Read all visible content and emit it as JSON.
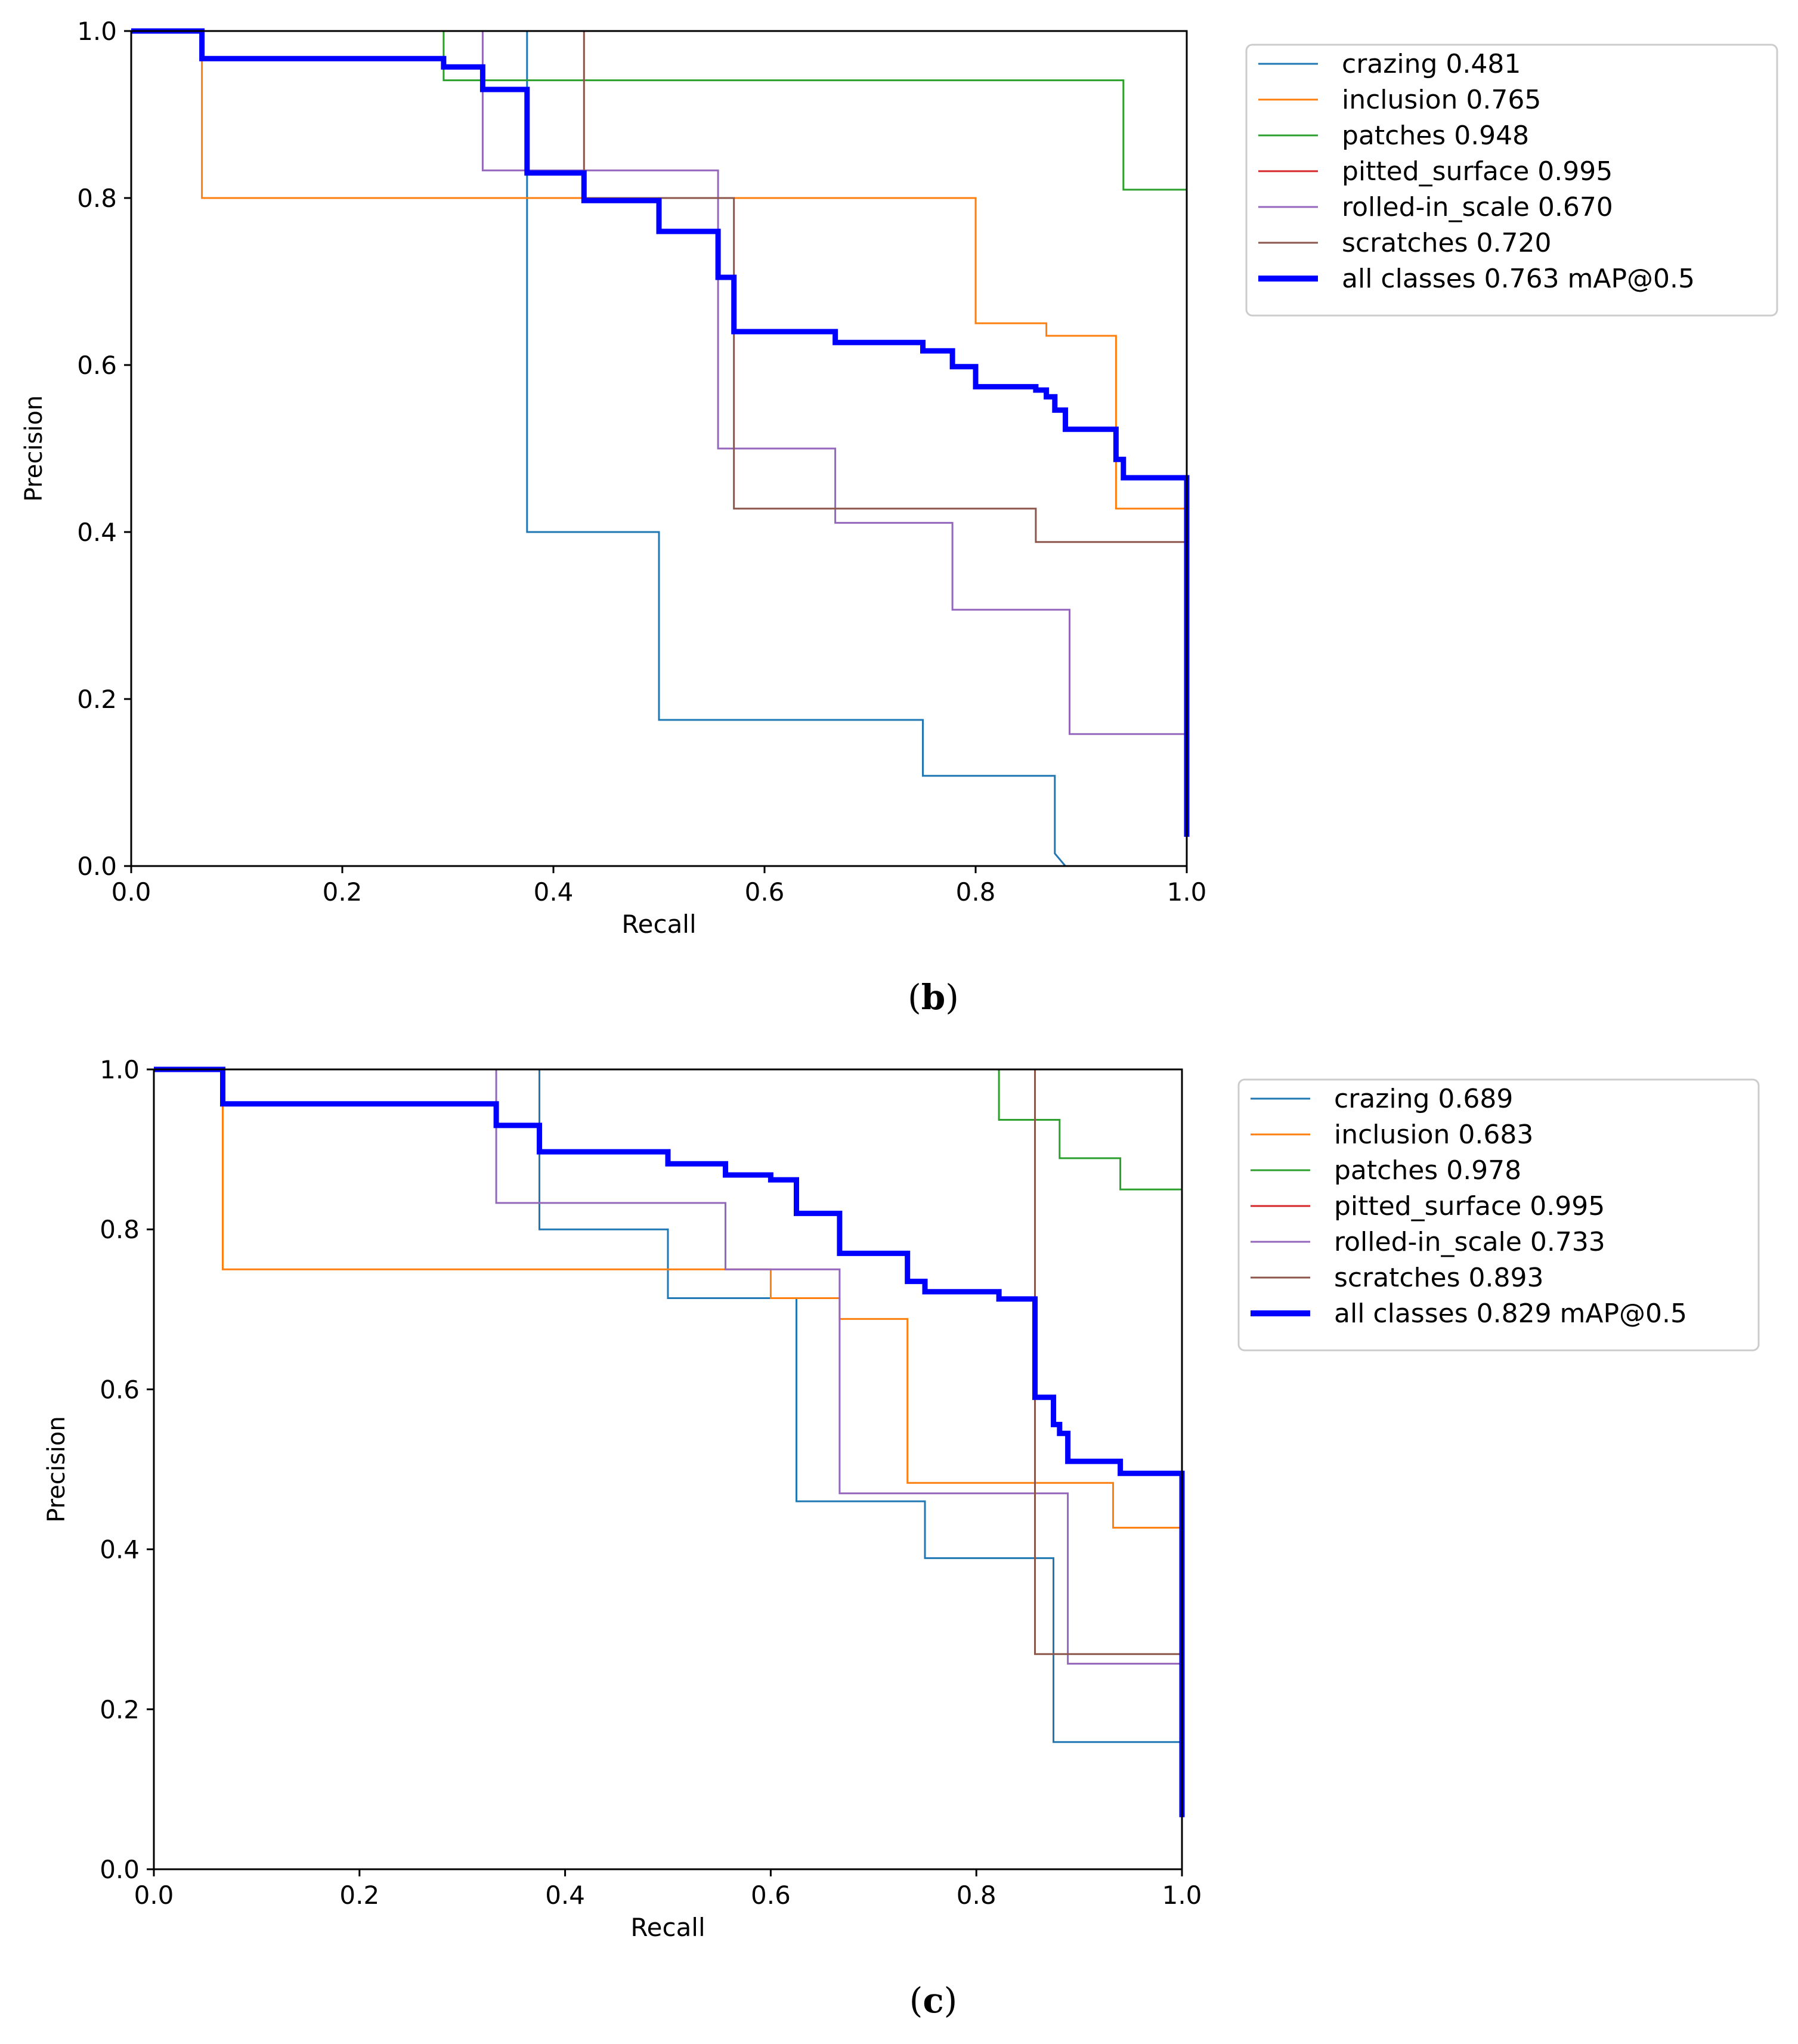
{
  "chart_data": [
    {
      "type": "line",
      "caption": "b",
      "xlabel": "Recall",
      "ylabel": "Precision",
      "xlim": [
        0,
        1
      ],
      "ylim": [
        0,
        1
      ],
      "xticks": [
        "0.0",
        "0.2",
        "0.4",
        "0.6",
        "0.8",
        "1.0"
      ],
      "yticks": [
        "0.0",
        "0.2",
        "0.4",
        "0.6",
        "0.8",
        "1.0"
      ],
      "legend_position": "outside-right",
      "series": [
        {
          "name": "crazing",
          "score": "0.481",
          "color": "#1f77b4",
          "x": [
            0,
            0.375,
            0.375,
            0.5,
            0.5,
            0.75,
            0.75,
            0.875,
            0.875,
            0.885,
            1.0
          ],
          "y": [
            1,
            1,
            0.4,
            0.4,
            0.175,
            0.175,
            0.108,
            0.108,
            0.015,
            0,
            0
          ]
        },
        {
          "name": "inclusion",
          "score": "0.765",
          "color": "#ff7f0e",
          "x": [
            0,
            0.067,
            0.067,
            0.8,
            0.8,
            0.867,
            0.867,
            0.933,
            0.933,
            1.0
          ],
          "y": [
            1,
            1,
            0.8,
            0.8,
            0.65,
            0.65,
            0.635,
            0.635,
            0.428,
            0.428
          ]
        },
        {
          "name": "patches",
          "score": "0.948",
          "color": "#2ca02c",
          "x": [
            0,
            0.296,
            0.296,
            0.94,
            0.94,
            1.0
          ],
          "y": [
            1,
            1,
            0.941,
            0.941,
            0.81,
            0.81
          ]
        },
        {
          "name": "pitted_surface",
          "score": "0.995",
          "color": "#d62728",
          "x": [
            0,
            1.0,
            1.0
          ],
          "y": [
            1,
            1,
            0
          ]
        },
        {
          "name": "rolled-in_scale",
          "score": "0.670",
          "color": "#9467bd",
          "x": [
            0,
            0.333,
            0.333,
            0.556,
            0.556,
            0.667,
            0.667,
            0.778,
            0.778,
            0.889,
            0.889,
            1.0
          ],
          "y": [
            1,
            1,
            0.833,
            0.833,
            0.5,
            0.5,
            0.411,
            0.411,
            0.307,
            0.307,
            0.158,
            0.158
          ]
        },
        {
          "name": "scratches",
          "score": "0.720",
          "color": "#8c564b",
          "x": [
            0,
            0.429,
            0.429,
            0.571,
            0.571,
            0.857,
            0.857,
            1.0,
            1.0
          ],
          "y": [
            1,
            1,
            0.8,
            0.8,
            0.428,
            0.428,
            0.388,
            0.388,
            1.0
          ]
        },
        {
          "name": "all classes",
          "score": "0.763 mAP@0.5",
          "color": "#0000ff",
          "bold": true,
          "x": [
            0,
            0.067,
            0.067,
            0.296,
            0.296,
            0.333,
            0.333,
            0.375,
            0.375,
            0.429,
            0.429,
            0.5,
            0.5,
            0.556,
            0.556,
            0.571,
            0.571,
            0.667,
            0.667,
            0.75,
            0.75,
            0.778,
            0.778,
            0.8,
            0.8,
            0.857,
            0.857,
            0.867,
            0.867,
            0.875,
            0.875,
            0.885,
            0.885,
            0.933,
            0.933,
            0.94,
            0.94,
            1.0,
            1.0
          ],
          "y": [
            1,
            1,
            0.967,
            0.967,
            0.957,
            0.957,
            0.93,
            0.93,
            0.83,
            0.83,
            0.797,
            0.797,
            0.76,
            0.76,
            0.705,
            0.705,
            0.64,
            0.64,
            0.627,
            0.627,
            0.617,
            0.617,
            0.598,
            0.598,
            0.574,
            0.574,
            0.57,
            0.57,
            0.562,
            0.562,
            0.546,
            0.546,
            0.523,
            0.523,
            0.487,
            0.487,
            0.465,
            0.465,
            0.035
          ]
        }
      ]
    },
    {
      "type": "line",
      "caption": "c",
      "xlabel": "Recall",
      "ylabel": "Precision",
      "xlim": [
        0,
        1
      ],
      "ylim": [
        0,
        1
      ],
      "xticks": [
        "0.0",
        "0.2",
        "0.4",
        "0.6",
        "0.8",
        "1.0"
      ],
      "yticks": [
        "0.0",
        "0.2",
        "0.4",
        "0.6",
        "0.8",
        "1.0"
      ],
      "legend_position": "outside-right",
      "series": [
        {
          "name": "crazing",
          "score": "0.689",
          "color": "#1f77b4",
          "x": [
            0,
            0.375,
            0.375,
            0.5,
            0.5,
            0.625,
            0.625,
            0.75,
            0.75,
            0.875,
            0.875,
            1.0
          ],
          "y": [
            1,
            1,
            0.8,
            0.8,
            0.714,
            0.714,
            0.46,
            0.46,
            0.389,
            0.389,
            0.159,
            0.159
          ]
        },
        {
          "name": "inclusion",
          "score": "0.683",
          "color": "#ff7f0e",
          "x": [
            0,
            0.067,
            0.067,
            0.6,
            0.6,
            0.667,
            0.667,
            0.733,
            0.733,
            0.933,
            0.933,
            1.0
          ],
          "y": [
            1,
            1,
            0.75,
            0.75,
            0.714,
            0.714,
            0.688,
            0.688,
            0.483,
            0.483,
            0.427,
            0.427
          ]
        },
        {
          "name": "patches",
          "score": "0.978",
          "color": "#2ca02c",
          "x": [
            0,
            0.822,
            0.822,
            0.881,
            0.881,
            0.94,
            0.94,
            1.0
          ],
          "y": [
            1,
            1,
            0.937,
            0.937,
            0.889,
            0.889,
            0.85,
            0.85
          ]
        },
        {
          "name": "pitted_surface",
          "score": "0.995",
          "color": "#d62728",
          "x": [
            0,
            1.0,
            1.0
          ],
          "y": [
            1,
            1,
            0
          ]
        },
        {
          "name": "rolled-in_scale",
          "score": "0.733",
          "color": "#9467bd",
          "x": [
            0,
            0.333,
            0.333,
            0.556,
            0.556,
            0.667,
            0.667,
            0.889,
            0.889,
            1.0
          ],
          "y": [
            1,
            1,
            0.833,
            0.833,
            0.75,
            0.75,
            0.47,
            0.47,
            0.257,
            0.257
          ]
        },
        {
          "name": "scratches",
          "score": "0.893",
          "color": "#8c564b",
          "x": [
            0,
            0.857,
            0.857,
            1.0,
            1.0
          ],
          "y": [
            1,
            1,
            0.269,
            0.269,
            1.0
          ]
        },
        {
          "name": "all classes",
          "score": "0.829 mAP@0.5",
          "color": "#0000ff",
          "bold": true,
          "x": [
            0,
            0.067,
            0.067,
            0.333,
            0.333,
            0.375,
            0.375,
            0.5,
            0.5,
            0.556,
            0.556,
            0.6,
            0.6,
            0.625,
            0.625,
            0.667,
            0.667,
            0.733,
            0.733,
            0.75,
            0.75,
            0.822,
            0.822,
            0.857,
            0.857,
            0.875,
            0.875,
            0.881,
            0.881,
            0.889,
            0.889,
            0.94,
            0.94,
            1.0,
            1.0
          ],
          "y": [
            1,
            1,
            0.957,
            0.957,
            0.93,
            0.93,
            0.897,
            0.897,
            0.882,
            0.882,
            0.868,
            0.868,
            0.862,
            0.862,
            0.82,
            0.82,
            0.77,
            0.77,
            0.735,
            0.735,
            0.722,
            0.722,
            0.713,
            0.713,
            0.59,
            0.59,
            0.556,
            0.556,
            0.545,
            0.545,
            0.51,
            0.51,
            0.495,
            0.495,
            0.065
          ]
        }
      ]
    }
  ]
}
